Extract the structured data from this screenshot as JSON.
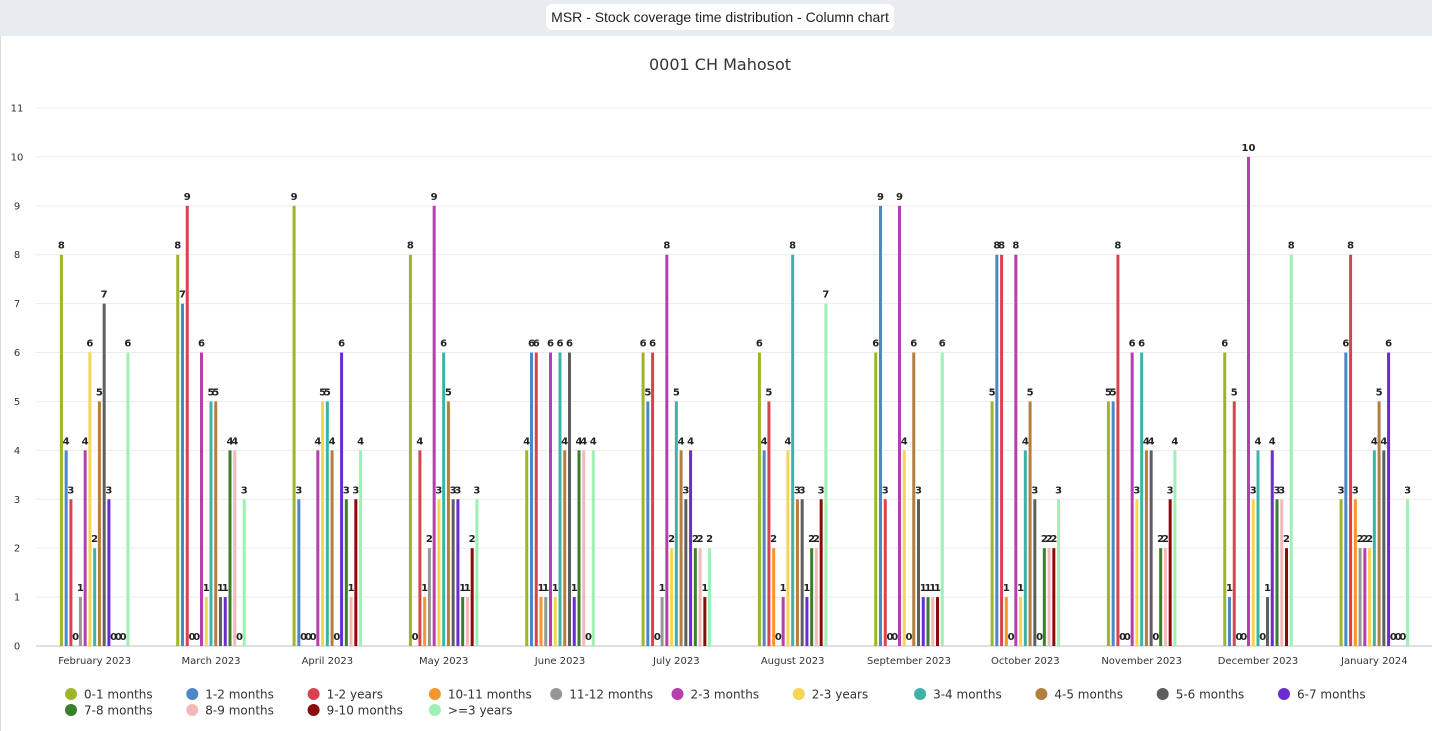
{
  "window": {
    "title": "MSR - Stock coverage time distribution - Column chart"
  },
  "chart_data": {
    "type": "bar",
    "title": "0001 CH Mahosot",
    "xlabel": "",
    "ylabel": "",
    "ylim": [
      0,
      11
    ],
    "yticks": [
      "0",
      "1",
      "2",
      "3",
      "4",
      "5",
      "6",
      "7",
      "8",
      "9",
      "10",
      "11"
    ],
    "grid": true,
    "legend": "bottom",
    "categories": [
      "February 2023",
      "March 2023",
      "April 2023",
      "May 2023",
      "June 2023",
      "July 2023",
      "August 2023",
      "September 2023",
      "October 2023",
      "November 2023",
      "December 2023",
      "January 2024"
    ],
    "series": [
      {
        "name": "0-1 months",
        "color": "#9cb52a",
        "values": [
          8,
          8,
          9,
          8,
          4,
          6,
          6,
          6,
          5,
          5,
          6,
          3
        ]
      },
      {
        "name": "1-2 months",
        "color": "#4f86c6",
        "values": [
          4,
          7,
          3,
          0,
          6,
          5,
          4,
          9,
          8,
          5,
          1,
          6
        ]
      },
      {
        "name": "1-2 years",
        "color": "#d9434f",
        "values": [
          3,
          9,
          0,
          4,
          6,
          6,
          5,
          3,
          8,
          8,
          5,
          8
        ]
      },
      {
        "name": "10-11 months",
        "color": "#f5962c",
        "values": [
          0,
          0,
          0,
          1,
          1,
          0,
          2,
          0,
          1,
          0,
          0,
          3
        ]
      },
      {
        "name": "11-12 months",
        "color": "#999696",
        "values": [
          1,
          0,
          0,
          2,
          1,
          1,
          0,
          0,
          0,
          0,
          0,
          2
        ]
      },
      {
        "name": "2-3 months",
        "color": "#b43fad",
        "values": [
          4,
          6,
          4,
          9,
          6,
          8,
          1,
          9,
          8,
          6,
          10,
          2
        ]
      },
      {
        "name": "2-3 years",
        "color": "#f7d454",
        "values": [
          6,
          1,
          5,
          3,
          1,
          2,
          4,
          4,
          1,
          3,
          3,
          2
        ]
      },
      {
        "name": "3-4 months",
        "color": "#3cb3a6",
        "values": [
          2,
          5,
          5,
          6,
          6,
          5,
          8,
          0,
          4,
          6,
          4,
          4
        ]
      },
      {
        "name": "4-5 months",
        "color": "#b37f3e",
        "values": [
          5,
          5,
          4,
          5,
          4,
          4,
          3,
          6,
          5,
          4,
          0,
          5
        ]
      },
      {
        "name": "5-6 months",
        "color": "#5e5e5e",
        "values": [
          7,
          1,
          0,
          3,
          6,
          3,
          3,
          3,
          3,
          4,
          1,
          4
        ]
      },
      {
        "name": "6-7 months",
        "color": "#6a2bcf",
        "values": [
          3,
          1,
          6,
          3,
          1,
          4,
          1,
          1,
          0,
          0,
          4,
          6
        ]
      },
      {
        "name": "7-8 months",
        "color": "#3b7e2e",
        "values": [
          0,
          4,
          3,
          1,
          4,
          2,
          2,
          1,
          2,
          2,
          3,
          0
        ]
      },
      {
        "name": "8-9 months",
        "color": "#f3b9b9",
        "values": [
          0,
          4,
          1,
          1,
          4,
          2,
          2,
          1,
          2,
          2,
          3,
          0
        ]
      },
      {
        "name": "9-10 months",
        "color": "#8b0a0a",
        "values": [
          0,
          0,
          3,
          2,
          0,
          1,
          3,
          1,
          2,
          3,
          2,
          0
        ]
      },
      {
        "name": ">=3 years",
        "color": "#9ef0b5",
        "values": [
          6,
          3,
          4,
          3,
          4,
          2,
          7,
          6,
          3,
          4,
          8,
          3
        ]
      }
    ]
  }
}
